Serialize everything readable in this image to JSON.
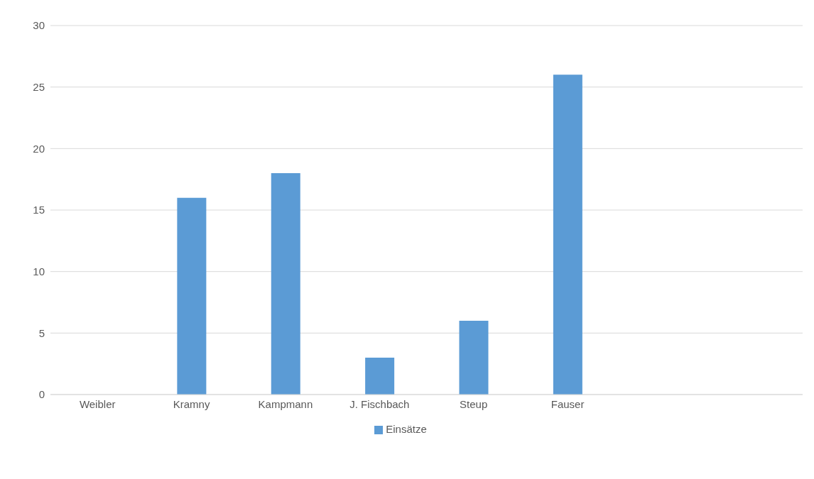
{
  "chart_data": {
    "type": "bar",
    "categories": [
      "Weibler",
      "Kramny",
      "Kampmann",
      "J. Fischbach",
      "Steup",
      "Fauser",
      null,
      null
    ],
    "series": [
      {
        "name": "Einsätze",
        "color": "#5b9bd5",
        "values": [
          0,
          16,
          18,
          3,
          6,
          26,
          null,
          null
        ]
      }
    ],
    "ylim": [
      0,
      30
    ],
    "yticks": [
      0,
      5,
      10,
      15,
      20,
      25,
      30
    ],
    "grid": "y",
    "legend": "bottom"
  }
}
